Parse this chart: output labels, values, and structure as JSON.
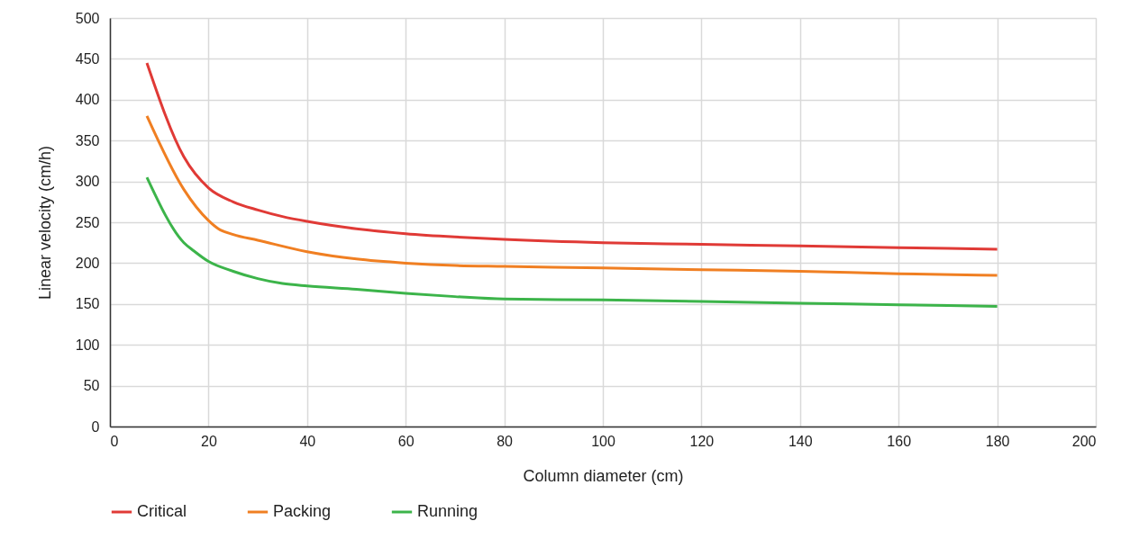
{
  "chart_data": {
    "type": "line",
    "xlabel": "Column diameter (cm)",
    "ylabel": "Linear velocity (cm/h)",
    "xlim": [
      0,
      200
    ],
    "xticks": [
      0,
      20,
      40,
      60,
      80,
      100,
      120,
      140,
      160,
      180,
      200
    ],
    "ylim": [
      0,
      500
    ],
    "yticks": [
      0,
      50,
      100,
      150,
      200,
      250,
      300,
      350,
      400,
      450,
      500
    ],
    "grid": true,
    "legend": "bottom",
    "marker": "none",
    "line_style": "solid",
    "series": [
      {
        "name": "Critical",
        "color": "#e03a36",
        "x": [
          7.5,
          15,
          20,
          25,
          30,
          35,
          40,
          50,
          60,
          70,
          80,
          100,
          120,
          140,
          160,
          180
        ],
        "values": [
          445,
          330,
          292,
          275,
          265,
          257,
          251,
          242,
          236,
          232,
          229,
          225,
          223,
          221,
          219,
          217
        ]
      },
      {
        "name": "Packing",
        "color": "#f07f22",
        "x": [
          7.5,
          15,
          20,
          22,
          25,
          30,
          40,
          50,
          60,
          70,
          80,
          100,
          120,
          140,
          160,
          180
        ],
        "values": [
          380,
          290,
          252,
          242,
          235,
          228,
          214,
          205,
          200,
          197,
          196,
          194,
          192,
          190,
          187,
          185
        ]
      },
      {
        "name": "Running",
        "color": "#3cb44a",
        "x": [
          7.5,
          15,
          17,
          20,
          25,
          30,
          35,
          40,
          50,
          60,
          70,
          80,
          100,
          120,
          140,
          160,
          180
        ],
        "values": [
          305,
          225,
          215,
          202,
          190,
          181,
          175,
          172,
          168,
          163,
          159,
          156,
          155,
          153,
          151,
          149,
          147
        ]
      }
    ]
  }
}
